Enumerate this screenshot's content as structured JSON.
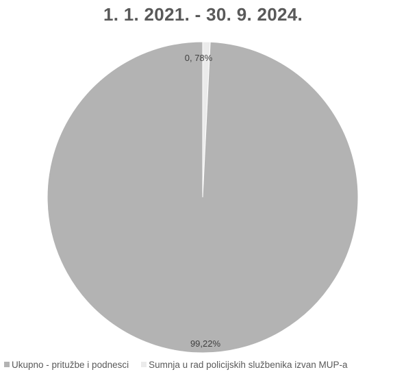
{
  "chart_data": {
    "type": "pie",
    "title": "1. 1. 2021. - 30. 9. 2024.",
    "slices": [
      {
        "name": "Ukupno - pritužbe i podnesci",
        "value": 99.22,
        "label": "99,22%",
        "color": "#b3b3b3"
      },
      {
        "name": "Sumnja u rad policijskih službenika izvan MUP-a",
        "value": 0.78,
        "label": "0, 78%",
        "color": "#ebebeb"
      }
    ],
    "legend_position": "bottom"
  }
}
